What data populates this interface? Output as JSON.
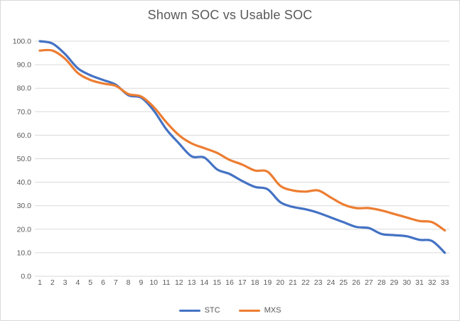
{
  "chart_data": {
    "type": "line",
    "title": "Shown SOC vs Usable SOC",
    "xlabel": "",
    "ylabel": "",
    "x": [
      1,
      2,
      3,
      4,
      5,
      6,
      7,
      8,
      9,
      10,
      11,
      12,
      13,
      14,
      15,
      16,
      17,
      18,
      19,
      20,
      21,
      22,
      23,
      24,
      25,
      26,
      27,
      28,
      29,
      30,
      31,
      32,
      33
    ],
    "x_tick_labels": [
      "1",
      "2",
      "3",
      "4",
      "5",
      "6",
      "7",
      "8",
      "9",
      "10",
      "11",
      "12",
      "13",
      "14",
      "15",
      "16",
      "17",
      "18",
      "19",
      "20",
      "21",
      "22",
      "23",
      "24",
      "25",
      "26",
      "27",
      "28",
      "29",
      "30",
      "31",
      "32",
      "33"
    ],
    "y_tick_values": [
      0,
      10,
      20,
      30,
      40,
      50,
      60,
      70,
      80,
      90,
      100
    ],
    "y_tick_labels": [
      "0.0",
      "10.0",
      "20.0",
      "30.0",
      "40.0",
      "50.0",
      "60.0",
      "70.0",
      "80.0",
      "90.0",
      "100.0"
    ],
    "ylim": [
      0,
      100
    ],
    "grid": true,
    "smoothed_lines": true,
    "legend_position": "bottom",
    "series": [
      {
        "name": "STC",
        "color": "#4472C4",
        "values": [
          100.0,
          99.0,
          94.5,
          88.5,
          85.5,
          83.5,
          81.5,
          77.0,
          76.0,
          70.5,
          62.5,
          56.5,
          51.0,
          50.5,
          45.5,
          43.5,
          40.5,
          38.0,
          37.0,
          31.5,
          29.5,
          28.5,
          27.0,
          25.0,
          23.0,
          21.0,
          20.5,
          18.0,
          17.5,
          17.0,
          15.5,
          15.0,
          10.0
        ]
      },
      {
        "name": "MXS",
        "color": "#ED7D31",
        "values": [
          96.0,
          96.0,
          92.5,
          86.5,
          83.5,
          82.0,
          81.0,
          77.5,
          76.5,
          72.0,
          65.5,
          60.0,
          56.5,
          54.5,
          52.5,
          49.5,
          47.5,
          45.0,
          44.5,
          38.5,
          36.5,
          36.0,
          36.5,
          33.5,
          30.5,
          29.0,
          29.0,
          28.0,
          26.5,
          25.0,
          23.5,
          23.0,
          19.5
        ]
      }
    ],
    "colors": {
      "gridline": "#D9D9D9",
      "axis_text": "#595959",
      "title_text": "#595959",
      "background": "#FFFFFF",
      "border": "#D9D9D9"
    }
  }
}
